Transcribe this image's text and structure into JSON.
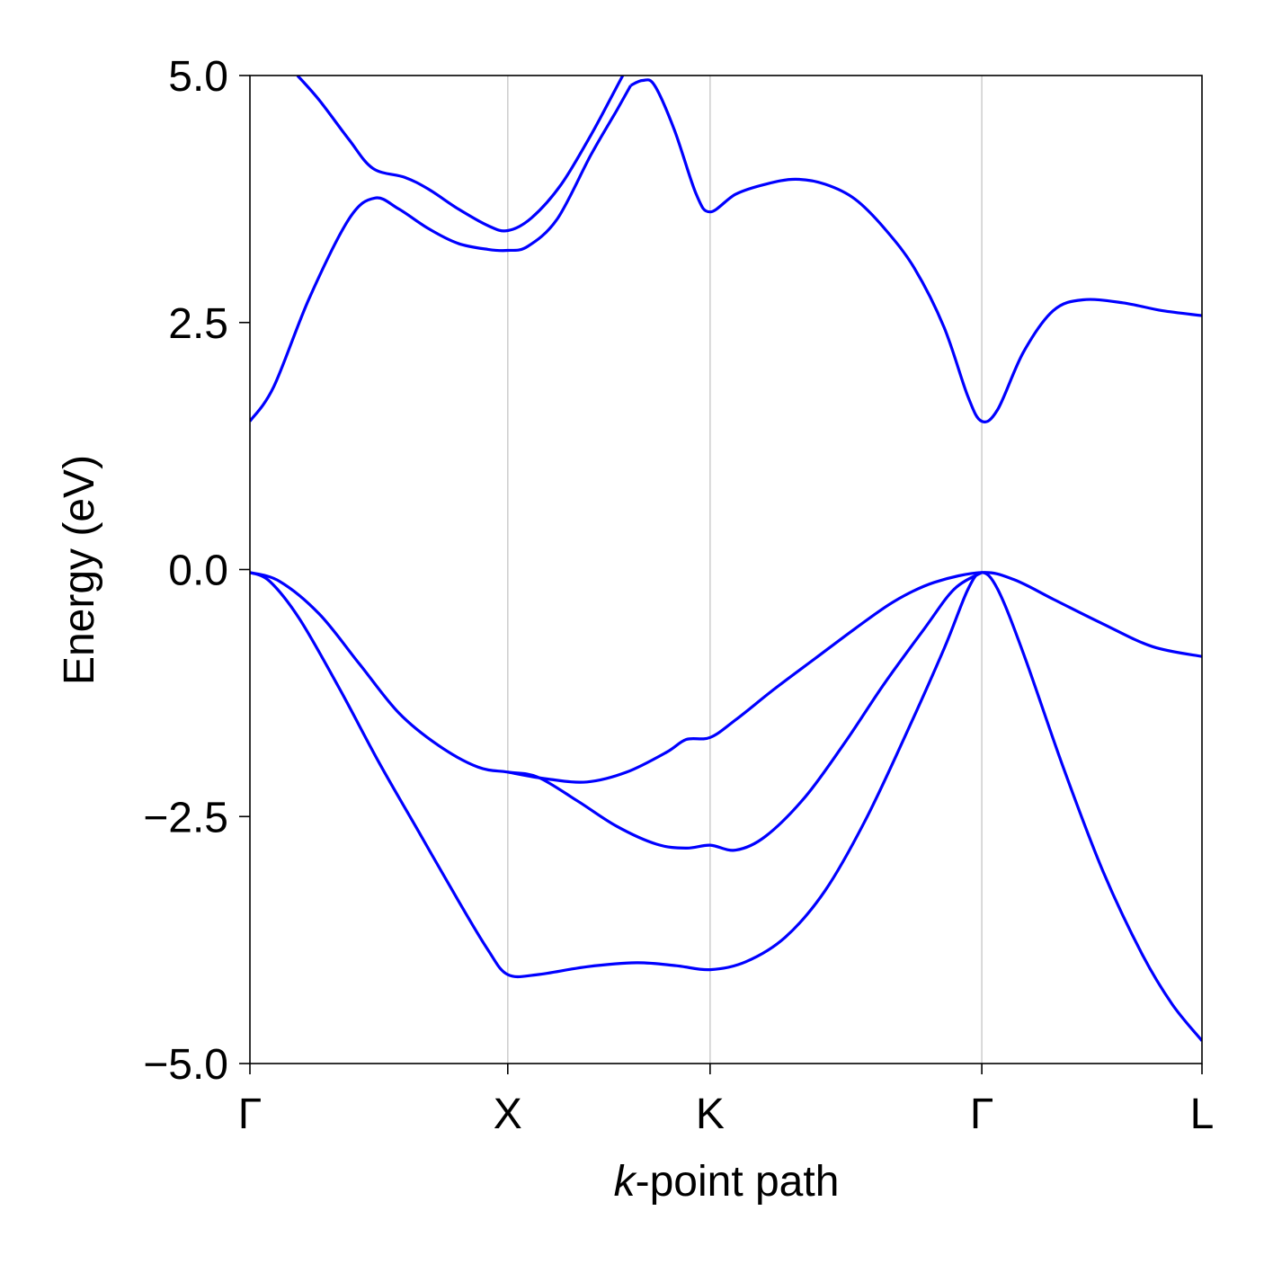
{
  "chart_data": {
    "type": "line",
    "title": "",
    "xlabel_italic": "k",
    "xlabel_rest": "-point path",
    "ylabel": "Energy (eV)",
    "ylim": [
      -5.0,
      5.0
    ],
    "xlim": [
      0.0,
      4.8
    ],
    "yticks": [
      {
        "value": 5.0,
        "label": "5.0"
      },
      {
        "value": 2.5,
        "label": "2.5"
      },
      {
        "value": 0.0,
        "label": "0.0"
      },
      {
        "value": -2.5,
        "label": "−2.5"
      },
      {
        "value": -5.0,
        "label": "−5.0"
      }
    ],
    "kpoints": [
      {
        "x": 0.0,
        "label": "Γ"
      },
      {
        "x": 1.3,
        "label": "X"
      },
      {
        "x": 2.32,
        "label": "K"
      },
      {
        "x": 3.69,
        "label": "Γ"
      },
      {
        "x": 4.8,
        "label": "L"
      }
    ],
    "line_color": "#0000ff",
    "grid_color": "#d0d0d0",
    "series": [
      {
        "name": "band-1",
        "points": [
          [
            0.0,
            -0.03
          ],
          [
            0.1,
            -0.12
          ],
          [
            0.25,
            -0.5
          ],
          [
            0.45,
            -1.2
          ],
          [
            0.65,
            -1.95
          ],
          [
            0.85,
            -2.65
          ],
          [
            1.05,
            -3.35
          ],
          [
            1.2,
            -3.85
          ],
          [
            1.3,
            -4.1
          ],
          [
            1.45,
            -4.1
          ],
          [
            1.7,
            -4.02
          ],
          [
            1.95,
            -3.98
          ],
          [
            2.15,
            -4.01
          ],
          [
            2.32,
            -4.05
          ],
          [
            2.5,
            -3.97
          ],
          [
            2.7,
            -3.72
          ],
          [
            2.9,
            -3.25
          ],
          [
            3.1,
            -2.55
          ],
          [
            3.3,
            -1.7
          ],
          [
            3.5,
            -0.8
          ],
          [
            3.62,
            -0.2
          ],
          [
            3.69,
            -0.03
          ],
          [
            3.77,
            -0.2
          ],
          [
            3.9,
            -0.85
          ],
          [
            4.1,
            -2.0
          ],
          [
            4.3,
            -3.05
          ],
          [
            4.5,
            -3.9
          ],
          [
            4.65,
            -4.4
          ],
          [
            4.8,
            -4.77
          ]
        ]
      },
      {
        "name": "band-2",
        "points": [
          [
            0.0,
            -0.03
          ],
          [
            0.15,
            -0.12
          ],
          [
            0.35,
            -0.45
          ],
          [
            0.55,
            -0.95
          ],
          [
            0.75,
            -1.45
          ],
          [
            0.95,
            -1.78
          ],
          [
            1.15,
            -2.0
          ],
          [
            1.3,
            -2.05
          ],
          [
            1.45,
            -2.1
          ],
          [
            1.65,
            -2.34
          ],
          [
            1.85,
            -2.6
          ],
          [
            2.05,
            -2.78
          ],
          [
            2.2,
            -2.82
          ],
          [
            2.32,
            -2.79
          ],
          [
            2.45,
            -2.84
          ],
          [
            2.6,
            -2.7
          ],
          [
            2.8,
            -2.3
          ],
          [
            3.0,
            -1.75
          ],
          [
            3.2,
            -1.15
          ],
          [
            3.4,
            -0.6
          ],
          [
            3.55,
            -0.2
          ],
          [
            3.69,
            -0.03
          ]
        ]
      },
      {
        "name": "band-3",
        "points": [
          [
            1.3,
            -2.05
          ],
          [
            1.5,
            -2.12
          ],
          [
            1.7,
            -2.15
          ],
          [
            1.9,
            -2.05
          ],
          [
            2.1,
            -1.85
          ],
          [
            2.2,
            -1.72
          ],
          [
            2.32,
            -1.7
          ],
          [
            2.45,
            -1.52
          ],
          [
            2.65,
            -1.2
          ],
          [
            2.85,
            -0.9
          ],
          [
            3.05,
            -0.6
          ],
          [
            3.25,
            -0.32
          ],
          [
            3.45,
            -0.13
          ],
          [
            3.69,
            -0.03
          ],
          [
            3.85,
            -0.1
          ],
          [
            4.05,
            -0.3
          ],
          [
            4.3,
            -0.55
          ],
          [
            4.55,
            -0.78
          ],
          [
            4.8,
            -0.88
          ]
        ]
      },
      {
        "name": "band-4",
        "points": [
          [
            0.0,
            1.5
          ],
          [
            0.12,
            1.85
          ],
          [
            0.3,
            2.75
          ],
          [
            0.5,
            3.55
          ],
          [
            0.63,
            3.76
          ],
          [
            0.75,
            3.65
          ],
          [
            0.9,
            3.45
          ],
          [
            1.05,
            3.3
          ],
          [
            1.2,
            3.24
          ],
          [
            1.3,
            3.23
          ],
          [
            1.4,
            3.27
          ],
          [
            1.55,
            3.55
          ],
          [
            1.72,
            4.2
          ],
          [
            1.85,
            4.65
          ],
          [
            1.92,
            4.9
          ]
        ]
      },
      {
        "name": "band-5",
        "points": [
          [
            0.24,
            5.0
          ],
          [
            0.35,
            4.75
          ],
          [
            0.5,
            4.35
          ],
          [
            0.62,
            4.06
          ],
          [
            0.78,
            3.97
          ],
          [
            0.9,
            3.85
          ],
          [
            1.05,
            3.65
          ],
          [
            1.2,
            3.48
          ],
          [
            1.3,
            3.43
          ],
          [
            1.42,
            3.56
          ],
          [
            1.57,
            3.9
          ],
          [
            1.72,
            4.4
          ],
          [
            1.84,
            4.85
          ],
          [
            1.88,
            5.0
          ]
        ]
      },
      {
        "name": "band-6",
        "points": [
          [
            1.92,
            4.9
          ],
          [
            1.98,
            4.95
          ],
          [
            2.04,
            4.9
          ],
          [
            2.14,
            4.45
          ],
          [
            2.25,
            3.8
          ],
          [
            2.32,
            3.62
          ],
          [
            2.45,
            3.8
          ],
          [
            2.6,
            3.9
          ],
          [
            2.75,
            3.95
          ],
          [
            2.9,
            3.9
          ],
          [
            3.05,
            3.75
          ],
          [
            3.2,
            3.45
          ],
          [
            3.35,
            3.05
          ],
          [
            3.5,
            2.45
          ],
          [
            3.62,
            1.75
          ],
          [
            3.69,
            1.5
          ],
          [
            3.77,
            1.62
          ],
          [
            3.9,
            2.2
          ],
          [
            4.05,
            2.62
          ],
          [
            4.2,
            2.73
          ],
          [
            4.4,
            2.7
          ],
          [
            4.6,
            2.62
          ],
          [
            4.8,
            2.57
          ]
        ]
      }
    ]
  }
}
